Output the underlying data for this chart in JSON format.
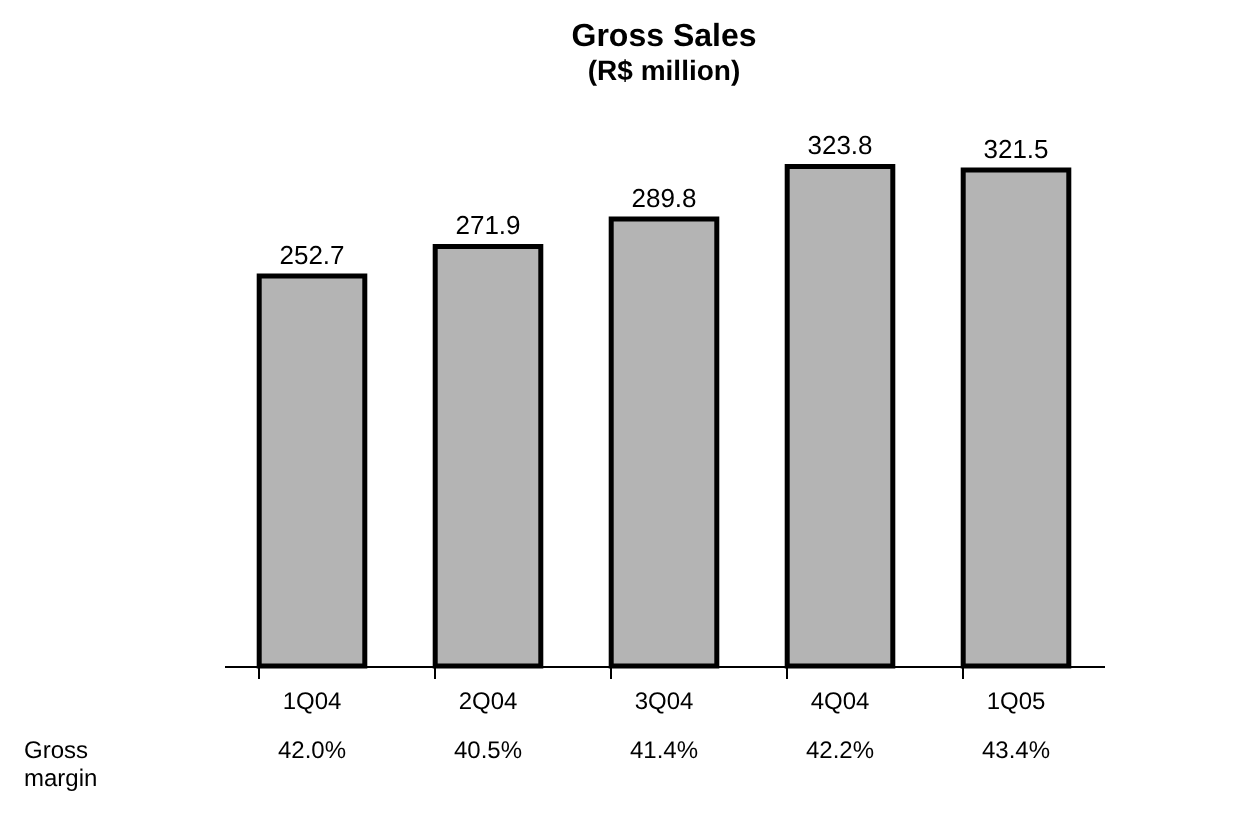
{
  "chart_data": {
    "type": "bar",
    "title": "Gross Sales",
    "subtitle": "(R$ million)",
    "categories": [
      "1Q04",
      "2Q04",
      "3Q04",
      "4Q04",
      "1Q05"
    ],
    "values": [
      252.7,
      271.9,
      289.8,
      323.8,
      321.5
    ],
    "color": "#b4b4b4",
    "data_labels": true,
    "annotations": [
      "Gross margin",
      "42.0%",
      "40.5%",
      "41.4%",
      "42.2%",
      "43.4%"
    ]
  }
}
